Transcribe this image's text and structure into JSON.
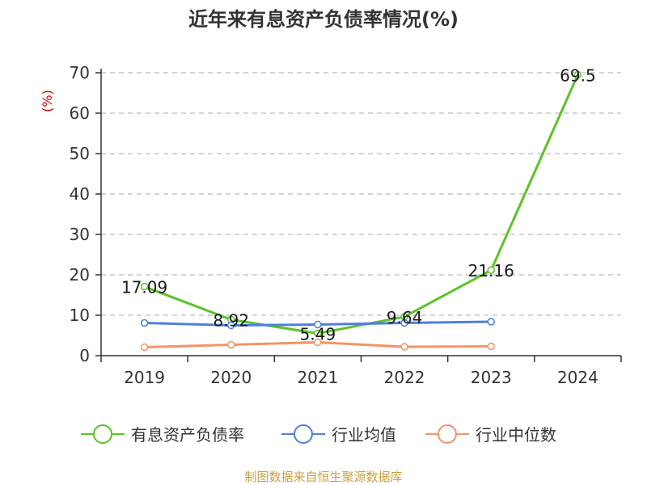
{
  "chart_data": {
    "type": "line",
    "title": "近年来有息资产负债率情况(%)",
    "ylabel": "(%)",
    "xlabel": "",
    "categories": [
      "2019",
      "2020",
      "2021",
      "2022",
      "2023",
      "2024"
    ],
    "ylim": [
      0,
      70
    ],
    "yticks": [
      0,
      10,
      20,
      30,
      40,
      50,
      60,
      70
    ],
    "grid": true,
    "legend_position": "bottom",
    "series": [
      {
        "name": "有息资产负债率",
        "color": "#5cc227",
        "values": [
          17.09,
          8.92,
          5.49,
          9.64,
          21.16,
          69.5
        ],
        "data_labels": [
          "17.09",
          "8.92",
          "5.49",
          "9.64",
          "21.16",
          "69.5"
        ]
      },
      {
        "name": "行业均值",
        "color": "#4f7fdb",
        "values": [
          8.1,
          7.5,
          7.7,
          8.1,
          8.4,
          null
        ]
      },
      {
        "name": "行业中位数",
        "color": "#f39466",
        "values": [
          2.1,
          2.7,
          3.3,
          2.2,
          2.3,
          null
        ]
      }
    ]
  },
  "colors": {
    "title": "#333333",
    "unit": "#cc0000",
    "source": "#c9a040",
    "grid": "#bbbbbb",
    "axis": "#333333"
  },
  "source": "制图数据来自恒生聚源数据库"
}
